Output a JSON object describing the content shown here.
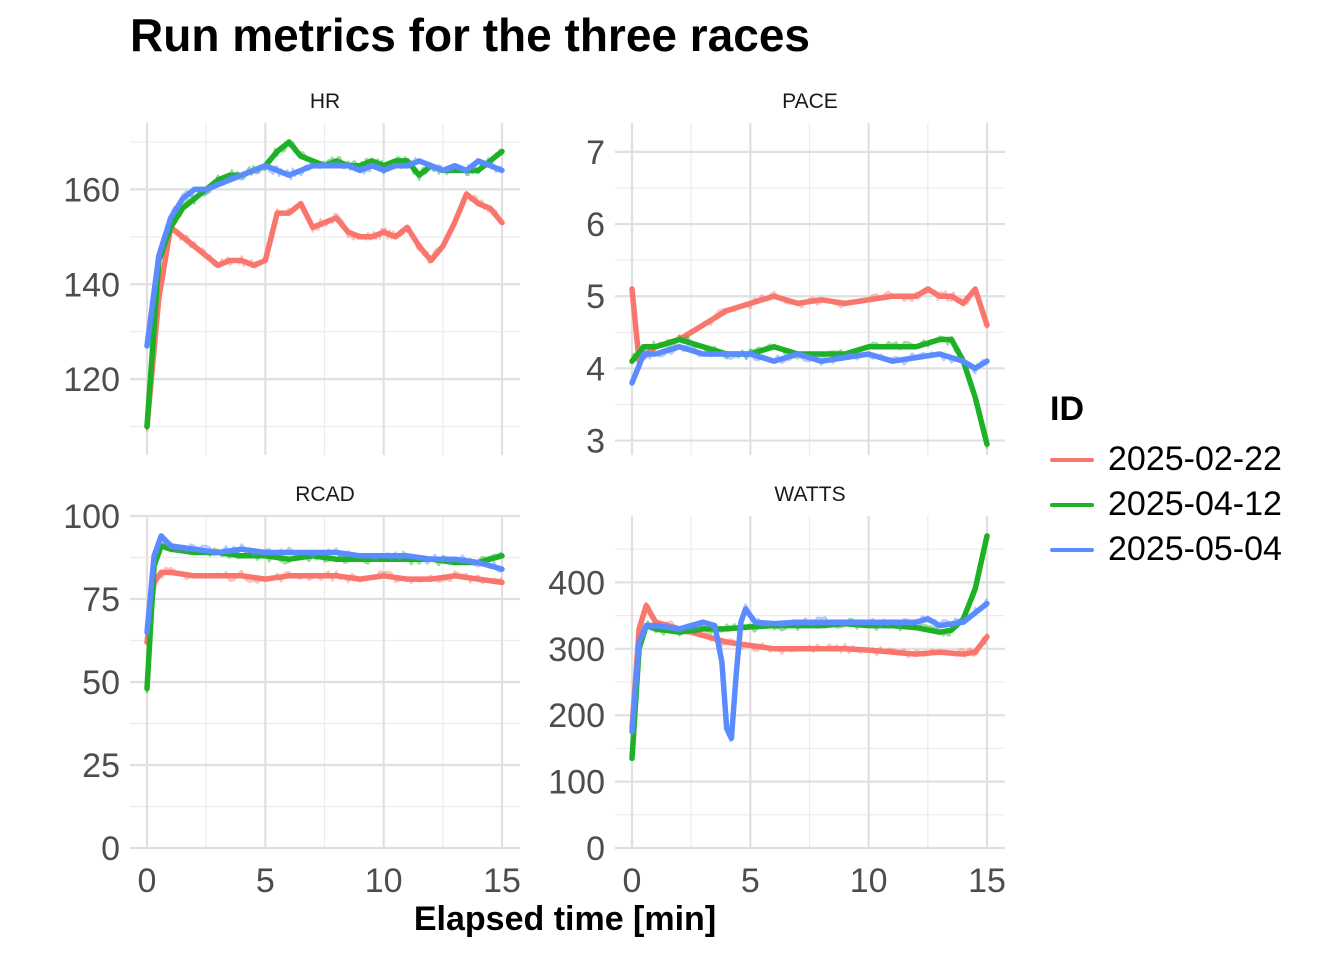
{
  "title": "Run metrics for the three races",
  "xlabel": "Elapsed time [min]",
  "legend": {
    "title": "ID",
    "items": [
      {
        "label": "2025-02-22",
        "color": "#F8766D"
      },
      {
        "label": "2025-04-12",
        "color": "#1DB125"
      },
      {
        "label": "2025-05-04",
        "color": "#5B8CFF"
      }
    ]
  },
  "chart_data": {
    "type": "line",
    "facets": true,
    "x_ticks": [
      0,
      5,
      10,
      15
    ],
    "panels": [
      {
        "strip": "HR",
        "ylim": [
          104,
          174
        ],
        "y_ticks": [
          120,
          140,
          160
        ],
        "series": [
          {
            "name": "2025-02-22",
            "x": [
              0,
              0.5,
              1,
              1.5,
              2,
              2.5,
              3,
              3.5,
              4,
              4.5,
              5,
              5.5,
              6,
              6.5,
              7,
              7.5,
              8,
              8.5,
              9,
              9.5,
              10,
              10.5,
              11,
              11.5,
              12,
              12.5,
              13,
              13.5,
              14,
              14.5,
              15
            ],
            "y": [
              110,
              137,
              152,
              150,
              148,
              146,
              144,
              145,
              145,
              144,
              145,
              155,
              155,
              157,
              152,
              153,
              154,
              151,
              150,
              150,
              151,
              150,
              152,
              148,
              145,
              148,
              153,
              159,
              157,
              156,
              153
            ]
          },
          {
            "name": "2025-04-12",
            "x": [
              0,
              0.5,
              1,
              1.5,
              2,
              2.5,
              3,
              3.5,
              4,
              4.5,
              5,
              5.5,
              6,
              6.5,
              7,
              7.5,
              8,
              8.5,
              9,
              9.5,
              10,
              10.5,
              11,
              11.5,
              12,
              12.5,
              13,
              13.5,
              14,
              14.5,
              15
            ],
            "y": [
              110,
              145,
              152,
              156,
              158,
              160,
              162,
              163,
              163,
              164,
              165,
              168,
              170,
              167,
              166,
              165,
              166,
              165,
              165,
              166,
              165,
              166,
              166,
              163,
              165,
              164,
              164,
              164,
              164,
              166,
              168
            ]
          },
          {
            "name": "2025-05-04",
            "x": [
              0,
              0.5,
              1,
              1.5,
              2,
              2.5,
              3,
              3.5,
              4,
              4.5,
              5,
              5.5,
              6,
              6.5,
              7,
              7.5,
              8,
              8.5,
              9,
              9.5,
              10,
              10.5,
              11,
              11.5,
              12,
              12.5,
              13,
              13.5,
              14,
              14.5,
              15
            ],
            "y": [
              127,
              146,
              154,
              158,
              160,
              160,
              161,
              162,
              163,
              164,
              165,
              164,
              163,
              164,
              165,
              165,
              165,
              165,
              164,
              165,
              164,
              165,
              165,
              166,
              165,
              164,
              165,
              164,
              166,
              165,
              164
            ]
          }
        ]
      },
      {
        "strip": "PACE",
        "ylim": [
          2.8,
          7.4
        ],
        "y_ticks": [
          3,
          4,
          5,
          6,
          7
        ],
        "series": [
          {
            "name": "2025-02-22",
            "x": [
              0,
              0.3,
              1,
              2,
              3,
              4,
              5,
              6,
              7,
              8,
              9,
              10,
              11,
              12,
              12.5,
              13,
              13.5,
              14,
              14.5,
              15
            ],
            "y": [
              5.1,
              4.1,
              4.3,
              4.4,
              4.6,
              4.8,
              4.9,
              5.0,
              4.9,
              4.95,
              4.9,
              4.95,
              5.0,
              5.0,
              5.1,
              5.0,
              5.0,
              4.9,
              5.1,
              4.6
            ]
          },
          {
            "name": "2025-04-12",
            "x": [
              0,
              0.5,
              1,
              2,
              3,
              4,
              5,
              6,
              7,
              8,
              9,
              10,
              11,
              12,
              13,
              13.5,
              14,
              14.5,
              15
            ],
            "y": [
              4.1,
              4.3,
              4.3,
              4.4,
              4.3,
              4.2,
              4.2,
              4.3,
              4.2,
              4.2,
              4.2,
              4.3,
              4.3,
              4.3,
              4.4,
              4.4,
              4.1,
              3.6,
              2.95
            ]
          },
          {
            "name": "2025-05-04",
            "x": [
              0,
              0.5,
              1,
              2,
              3,
              4,
              5,
              6,
              7,
              8,
              9,
              10,
              11,
              12,
              13,
              14,
              14.5,
              15
            ],
            "y": [
              3.8,
              4.2,
              4.2,
              4.3,
              4.2,
              4.2,
              4.2,
              4.1,
              4.2,
              4.1,
              4.15,
              4.2,
              4.1,
              4.15,
              4.2,
              4.1,
              4.0,
              4.1
            ]
          }
        ]
      },
      {
        "strip": "RCAD",
        "ylim": [
          0,
          100
        ],
        "y_ticks": [
          0,
          25,
          50,
          75,
          100
        ],
        "series": [
          {
            "name": "2025-02-22",
            "x": [
              0,
              0.3,
              0.6,
              1,
              2,
              3,
              4,
              5,
              6,
              7,
              8,
              9,
              10,
              11,
              12,
              13,
              14,
              15
            ],
            "y": [
              62,
              80,
              83,
              83,
              82,
              82,
              82,
              81,
              82,
              82,
              82,
              81,
              82,
              81,
              81,
              82,
              81,
              80
            ]
          },
          {
            "name": "2025-04-12",
            "x": [
              0,
              0.3,
              0.6,
              1,
              2,
              3,
              4,
              5,
              6,
              7,
              8,
              9,
              10,
              11,
              12,
              13,
              14,
              15
            ],
            "y": [
              48,
              85,
              91,
              90,
              89,
              89,
              88,
              88,
              87,
              88,
              87,
              87,
              87,
              87,
              87,
              86,
              86,
              88
            ]
          },
          {
            "name": "2025-05-04",
            "x": [
              0,
              0.3,
              0.6,
              1,
              2,
              3,
              4,
              5,
              6,
              7,
              8,
              9,
              10,
              11,
              12,
              13,
              14,
              15
            ],
            "y": [
              65,
              88,
              94,
              91,
              90,
              89,
              90,
              89,
              89,
              89,
              89,
              88,
              88,
              88,
              87,
              87,
              86,
              84
            ]
          }
        ]
      },
      {
        "strip": "WATTS",
        "ylim": [
          0,
          500
        ],
        "y_ticks": [
          0,
          100,
          200,
          300,
          400
        ],
        "series": [
          {
            "name": "2025-02-22",
            "x": [
              0,
              0.3,
              0.6,
              1,
              2,
              3,
              4,
              5,
              6,
              7,
              8,
              9,
              10,
              11,
              12,
              13,
              14,
              14.5,
              15
            ],
            "y": [
              180,
              330,
              365,
              340,
              330,
              320,
              310,
              305,
              300,
              300,
              300,
              300,
              298,
              295,
              292,
              295,
              292,
              295,
              318
            ]
          },
          {
            "name": "2025-04-12",
            "x": [
              0,
              0.3,
              0.6,
              1,
              2,
              3,
              4,
              5,
              6,
              7,
              8,
              9,
              10,
              11,
              12,
              13,
              13.5,
              14,
              14.5,
              15
            ],
            "y": [
              135,
              300,
              335,
              330,
              325,
              330,
              330,
              333,
              335,
              335,
              335,
              338,
              335,
              335,
              332,
              325,
              328,
              345,
              390,
              470
            ]
          },
          {
            "name": "2025-05-04",
            "x": [
              0,
              0.3,
              0.6,
              1,
              2,
              3,
              3.5,
              3.8,
              4.0,
              4.2,
              4.4,
              4.6,
              4.8,
              5.2,
              6,
              7,
              8,
              9,
              10,
              11,
              12,
              12.5,
              13,
              14,
              15
            ],
            "y": [
              175,
              310,
              335,
              335,
              330,
              340,
              335,
              280,
              180,
              165,
              260,
              340,
              360,
              340,
              338,
              340,
              340,
              340,
              340,
              340,
              340,
              345,
              335,
              340,
              368
            ]
          }
        ]
      }
    ]
  }
}
